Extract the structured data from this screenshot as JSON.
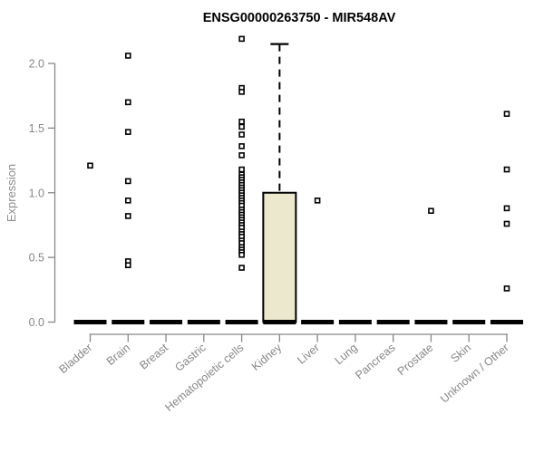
{
  "title": "ENSG00000263750 - MIR548AV",
  "colors": {
    "background": "#ffffff",
    "title": "#000000",
    "axis": "#878787",
    "tick_label": "#878787",
    "axis_label": "#8c8c8c",
    "box_fill": "#ece8cd",
    "box_stroke": "#000000",
    "median": "#000000",
    "point_stroke": "#000000",
    "point_fill": "#ffffff"
  },
  "chart_data": {
    "type": "boxplot",
    "title": "ENSG00000263750 - MIR548AV",
    "xlabel": "",
    "ylabel": "Expression",
    "ylim": [
      0,
      2.2
    ],
    "yticks": [
      0.0,
      0.5,
      1.0,
      1.5,
      2.0
    ],
    "ytick_labels": [
      "0.0",
      "0.5",
      "1.0",
      "1.5",
      "2.0"
    ],
    "grid": false,
    "legend": "none",
    "categories": [
      "Bladder",
      "Brain",
      "Breast",
      "Gastric",
      "Hematopoietic cells",
      "Kidney",
      "Liver",
      "Lung",
      "Pancreas",
      "Prostate",
      "Skin",
      "Unknown / Other"
    ],
    "boxes": [
      {
        "category": "Bladder",
        "median": 0,
        "q1": 0,
        "q3": 0,
        "whisker_low": 0,
        "whisker_high": 0,
        "outliers": [
          1.21
        ]
      },
      {
        "category": "Brain",
        "median": 0,
        "q1": 0,
        "q3": 0,
        "whisker_low": 0,
        "whisker_high": 0,
        "outliers": [
          2.06,
          1.7,
          1.47,
          1.09,
          0.94,
          0.82,
          0.47,
          0.44
        ]
      },
      {
        "category": "Breast",
        "median": 0,
        "q1": 0,
        "q3": 0,
        "whisker_low": 0,
        "whisker_high": 0,
        "outliers": []
      },
      {
        "category": "Gastric",
        "median": 0,
        "q1": 0,
        "q3": 0,
        "whisker_low": 0,
        "whisker_high": 0,
        "outliers": []
      },
      {
        "category": "Hematopoietic cells",
        "median": 0,
        "q1": 0,
        "q3": 0,
        "whisker_low": 0,
        "whisker_high": 0,
        "outliers": [
          2.19,
          1.81,
          1.78,
          1.55,
          1.51,
          1.45,
          1.36,
          1.29,
          1.18,
          1.14,
          1.12,
          1.1,
          1.08,
          1.06,
          1.04,
          1.02,
          1.0,
          0.98,
          0.96,
          0.94,
          0.92,
          0.9,
          0.87,
          0.85,
          0.83,
          0.81,
          0.79,
          0.77,
          0.75,
          0.73,
          0.7,
          0.68,
          0.66,
          0.63,
          0.61,
          0.58,
          0.56,
          0.54,
          0.52,
          0.42
        ]
      },
      {
        "category": "Kidney",
        "median": 0,
        "q1": 0,
        "q3": 1.0,
        "whisker_low": 0,
        "whisker_high": 2.15,
        "outliers": []
      },
      {
        "category": "Liver",
        "median": 0,
        "q1": 0,
        "q3": 0,
        "whisker_low": 0,
        "whisker_high": 0,
        "outliers": [
          0.94
        ]
      },
      {
        "category": "Lung",
        "median": 0,
        "q1": 0,
        "q3": 0,
        "whisker_low": 0,
        "whisker_high": 0,
        "outliers": []
      },
      {
        "category": "Pancreas",
        "median": 0,
        "q1": 0,
        "q3": 0,
        "whisker_low": 0,
        "whisker_high": 0,
        "outliers": []
      },
      {
        "category": "Prostate",
        "median": 0,
        "q1": 0,
        "q3": 0,
        "whisker_low": 0,
        "whisker_high": 0,
        "outliers": [
          0.86
        ]
      },
      {
        "category": "Skin",
        "median": 0,
        "q1": 0,
        "q3": 0,
        "whisker_low": 0,
        "whisker_high": 0,
        "outliers": []
      },
      {
        "category": "Unknown / Other",
        "median": 0,
        "q1": 0,
        "q3": 0,
        "whisker_low": 0,
        "whisker_high": 0,
        "outliers": [
          1.61,
          1.18,
          0.88,
          0.76,
          0.26
        ]
      }
    ]
  }
}
